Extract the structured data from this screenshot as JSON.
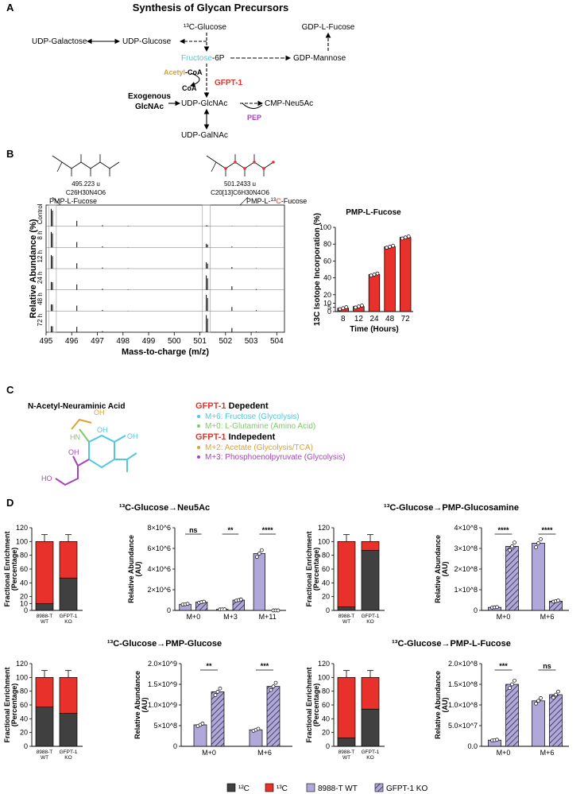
{
  "colors": {
    "red": "#e8312a",
    "dark": "#404040",
    "lav": "#b0a8d8",
    "cyan": "#4fc8e0",
    "green": "#7fc86a",
    "orange": "#e0a030",
    "purple": "#a843b8"
  },
  "panelA": {
    "letter": "A",
    "title": "Synthesis of Glycan Precursors",
    "glucose13c": "¹³C-Glucose",
    "gdp_fucose": "GDP-L-Fucose",
    "udp_galactose": "UDP-Galactose",
    "udp_glucose": "UDP-Glucose",
    "fructose": "Fructose",
    "f6p_suffix": "-6P",
    "gdp_mannose": "GDP-Mannose",
    "acetyl": "Acetyl",
    "acetyl_coa_suffix": "-CoA",
    "coa": "CoA",
    "gfpt1": "GFPT-1",
    "exo1": "Exogenous",
    "exo2": "GlcNAc",
    "udp_glcnac": "UDP-GlcNAc",
    "cmp": "CMP-Neu5Ac",
    "pep": "PEP",
    "udp_galnac": "UDP-GalNAc"
  },
  "panelB": {
    "letter": "B",
    "mass1": "495.223 u",
    "formula1": "C26H30N4O6",
    "mass2": "501.2433 u",
    "formula2": "C20[13]C6H30N4O6",
    "peak1": "PMP-L-Fucose",
    "peak2_pre": "PMP-L-",
    "peak2_13": "13",
    "peak2_c": "C",
    "peak2_post": "-Fucose",
    "ylabel": "Relative Abundance (%)",
    "xlabel": "Mass-to-charge (m/z)",
    "rows": [
      "Control",
      "8 h",
      "12 h",
      "24 h",
      "48 h",
      "72 h"
    ],
    "xticks": [
      "495",
      "496",
      "497",
      "498",
      "499",
      "500",
      "501",
      "502",
      "503",
      "504"
    ],
    "bar_title": "PMP-L-Fucose",
    "bar_ylabel": "13C Isotope Incorporation (%)",
    "bar_xlabel": "Time (Hours)"
  },
  "panelC": {
    "letter": "C",
    "title": "N-Acetyl-Neuraminic Acid",
    "dep_gfpt": "GFPT-1",
    "dep_rest": " Depedent",
    "l1": "M+6: Fructose (Glycolysis)",
    "l2": "M+0: L-Glutamine (Amino Acid)",
    "indep_gfpt": "GFPT-1",
    "indep_rest": " Indepedent",
    "l3": "M+2: Acetate (Glycolysis/TCA)",
    "l4": "M+3: Phosphoenolpyruvate (Glycolysis)"
  },
  "panelD": {
    "letter": "D",
    "titles": [
      "¹³C-Glucose→Neu5Ac",
      "¹³C-Glucose→PMP-Glucosamine",
      "¹³C-Glucose→PMP-Glucose",
      "¹³C-Glucose→PMP-L-Fucose"
    ],
    "fe_ylabel1": "Fractional Enrichment",
    "fe_ylabel2": "(Percentage)",
    "ra_ylabel1": "Relative Abundance",
    "ra_ylabel2": "(AU)",
    "wt1": "8988-T",
    "wt2": "WT",
    "ko1": "GFPT-1",
    "ko2": "KO",
    "legend": {
      "c12": "¹²C",
      "c13": "¹³C",
      "wt": "8988-T WT",
      "ko": "GFPT-1 KO"
    }
  },
  "chart_data": [
    {
      "type": "bar",
      "title": "PMP-L-Fucose",
      "xlabel": "Time (Hours)",
      "ylabel": "13C Isotope Incorporation (%)",
      "categories": [
        "8",
        "12",
        "24",
        "48",
        "72"
      ],
      "values": [
        4,
        6,
        44,
        77,
        88
      ],
      "ylim": [
        0,
        100
      ],
      "yticks": [
        0,
        5,
        10,
        20,
        40,
        60,
        80,
        100
      ]
    },
    {
      "type": "bar",
      "title": "13C-Glucose→Neu5Ac fractional enrichment",
      "categories": [
        "8988-T WT",
        "GFPT-1 KO"
      ],
      "series": [
        {
          "name": "12C",
          "values": [
            10,
            47
          ]
        },
        {
          "name": "13C",
          "values": [
            90,
            53
          ]
        }
      ],
      "ylim": [
        0,
        120
      ],
      "yticks": [
        0,
        10,
        20,
        40,
        60,
        80,
        100,
        120
      ]
    },
    {
      "type": "bar",
      "title": "13C-Glucose→Neu5Ac relative abundance",
      "categories": [
        "M+0",
        "M+3",
        "M+11"
      ],
      "series": [
        {
          "name": "8988-T WT",
          "values": [
            600000.0,
            100000.0,
            5500000.0
          ]
        },
        {
          "name": "GFPT-1 KO",
          "values": [
            800000.0,
            1000000.0,
            0
          ]
        }
      ],
      "ylim": [
        0,
        8000000.0
      ],
      "yticks": [
        "0",
        "2×10^6",
        "4×10^6",
        "6×10^6",
        "8×10^6"
      ],
      "significance": [
        "ns",
        "**",
        "****"
      ]
    },
    {
      "type": "bar",
      "title": "13C-Glucose→PMP-Glucosamine fractional enrichment",
      "categories": [
        "8988-T WT",
        "GFPT-1 KO"
      ],
      "series": [
        {
          "name": "12C",
          "values": [
            5,
            87
          ]
        },
        {
          "name": "13C",
          "values": [
            95,
            13
          ]
        }
      ],
      "ylim": [
        0,
        120
      ],
      "yticks": [
        0,
        20,
        40,
        60,
        80,
        100,
        120
      ]
    },
    {
      "type": "bar",
      "title": "13C-Glucose→PMP-Glucosamine relative abundance",
      "categories": [
        "M+0",
        "M+6"
      ],
      "series": [
        {
          "name": "8988-T WT",
          "values": [
            15000000.0,
            325000000.0
          ]
        },
        {
          "name": "GFPT-1 KO",
          "values": [
            310000000.0,
            45000000.0
          ]
        }
      ],
      "ylim": [
        0,
        400000000.0
      ],
      "yticks": [
        "0",
        "1×10^8",
        "2×10^8",
        "3×10^8",
        "4×10^8"
      ],
      "significance": [
        "****",
        "****"
      ]
    },
    {
      "type": "bar",
      "title": "13C-Glucose→PMP-Glucose fractional enrichment",
      "categories": [
        "8988-T WT",
        "GFPT-1 KO"
      ],
      "series": [
        {
          "name": "12C",
          "values": [
            57,
            48
          ]
        },
        {
          "name": "13C",
          "values": [
            43,
            52
          ]
        }
      ],
      "ylim": [
        0,
        120
      ],
      "yticks": [
        0,
        20,
        40,
        60,
        80,
        100,
        120
      ]
    },
    {
      "type": "bar",
      "title": "13C-Glucose→PMP-Glucose relative abundance",
      "categories": [
        "M+0",
        "M+6"
      ],
      "series": [
        {
          "name": "8988-T WT",
          "values": [
            520000000.0,
            400000000.0
          ]
        },
        {
          "name": "GFPT-1 KO",
          "values": [
            1320000000.0,
            1450000000.0
          ]
        }
      ],
      "ylim": [
        0,
        2000000000.0
      ],
      "yticks": [
        "0",
        "5×10^8",
        "1.0×10^9",
        "1.5×10^9",
        "2.0×10^9"
      ],
      "significance": [
        "**",
        "***"
      ]
    },
    {
      "type": "bar",
      "title": "13C-Glucose→PMP-L-Fucose fractional enrichment",
      "categories": [
        "8988-T WT",
        "GFPT-1 KO"
      ],
      "series": [
        {
          "name": "12C",
          "values": [
            12,
            54
          ]
        },
        {
          "name": "13C",
          "values": [
            88,
            46
          ]
        }
      ],
      "ylim": [
        0,
        120
      ],
      "yticks": [
        0,
        20,
        40,
        60,
        80,
        100,
        120
      ]
    },
    {
      "type": "bar",
      "title": "13C-Glucose→PMP-L-Fucose relative abundance",
      "categories": [
        "M+0",
        "M+6"
      ],
      "series": [
        {
          "name": "8988-T WT",
          "values": [
            15000000.0,
            110000000.0
          ]
        },
        {
          "name": "GFPT-1 KO",
          "values": [
            150000000.0,
            125000000.0
          ]
        }
      ],
      "ylim": [
        0,
        200000000.0
      ],
      "yticks": [
        "0.0",
        "5.0×10^7",
        "1.0×10^8",
        "1.5×10^8",
        "2.0×10^8"
      ],
      "significance": [
        "***",
        "ns"
      ]
    }
  ]
}
